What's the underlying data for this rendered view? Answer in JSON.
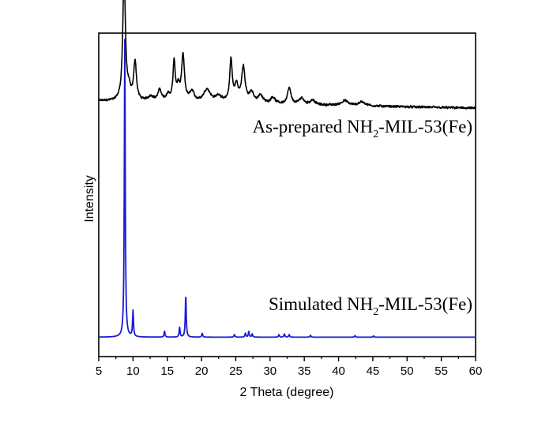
{
  "chart_data": {
    "type": "line",
    "title": "",
    "xlabel": "2 Theta (degree)",
    "ylabel": "Intensity",
    "xlim": [
      5,
      60
    ],
    "xticks": [
      "5",
      "10",
      "15",
      "20",
      "25",
      "30",
      "35",
      "40",
      "45",
      "50",
      "55",
      "60"
    ],
    "y_tick_labels": false,
    "grid": false,
    "legend": "none",
    "series": [
      {
        "label_main": "As-prepared NH",
        "label_sub": "2",
        "label_tail": "-MIL-53(Fe)",
        "color": "#000000",
        "baseline": 0.79,
        "noise": 0.0055,
        "tail_drop": 0.022,
        "peaks": [
          {
            "x": 8.7,
            "h": 0.4,
            "w": 0.22
          },
          {
            "x": 9.4,
            "h": 0.03,
            "w": 0.3
          },
          {
            "x": 10.3,
            "h": 0.12,
            "w": 0.24
          },
          {
            "x": 12.6,
            "h": 0.015,
            "w": 0.5
          },
          {
            "x": 13.9,
            "h": 0.035,
            "w": 0.3
          },
          {
            "x": 15.1,
            "h": 0.02,
            "w": 0.3
          },
          {
            "x": 16.0,
            "h": 0.12,
            "w": 0.2
          },
          {
            "x": 16.6,
            "h": 0.04,
            "w": 0.25
          },
          {
            "x": 17.3,
            "h": 0.14,
            "w": 0.25
          },
          {
            "x": 18.6,
            "h": 0.03,
            "w": 0.4
          },
          {
            "x": 20.8,
            "h": 0.04,
            "w": 0.6
          },
          {
            "x": 22.5,
            "h": 0.02,
            "w": 0.5
          },
          {
            "x": 24.3,
            "h": 0.13,
            "w": 0.22
          },
          {
            "x": 25.1,
            "h": 0.05,
            "w": 0.3
          },
          {
            "x": 26.1,
            "h": 0.11,
            "w": 0.3
          },
          {
            "x": 27.3,
            "h": 0.03,
            "w": 0.4
          },
          {
            "x": 28.6,
            "h": 0.025,
            "w": 0.4
          },
          {
            "x": 30.4,
            "h": 0.02,
            "w": 0.4
          },
          {
            "x": 32.8,
            "h": 0.05,
            "w": 0.3
          },
          {
            "x": 34.6,
            "h": 0.02,
            "w": 0.4
          },
          {
            "x": 36.2,
            "h": 0.015,
            "w": 0.4
          },
          {
            "x": 40.9,
            "h": 0.015,
            "w": 0.6
          },
          {
            "x": 43.4,
            "h": 0.012,
            "w": 0.6
          }
        ]
      },
      {
        "label_main": "Simulated NH",
        "label_sub": "2",
        "label_tail": "-MIL-53(Fe)",
        "color": "#1a1ad6",
        "baseline": 0.06,
        "noise": 0,
        "tail_drop": 0,
        "peaks": [
          {
            "x": 8.8,
            "h": 0.92,
            "w": 0.08
          },
          {
            "x": 10.0,
            "h": 0.08,
            "w": 0.08
          },
          {
            "x": 14.6,
            "h": 0.018,
            "w": 0.08
          },
          {
            "x": 16.8,
            "h": 0.03,
            "w": 0.08
          },
          {
            "x": 17.7,
            "h": 0.13,
            "w": 0.08
          },
          {
            "x": 20.1,
            "h": 0.012,
            "w": 0.08
          },
          {
            "x": 24.8,
            "h": 0.008,
            "w": 0.08
          },
          {
            "x": 26.4,
            "h": 0.012,
            "w": 0.08
          },
          {
            "x": 26.9,
            "h": 0.018,
            "w": 0.08
          },
          {
            "x": 27.4,
            "h": 0.01,
            "w": 0.08
          },
          {
            "x": 31.3,
            "h": 0.008,
            "w": 0.08
          },
          {
            "x": 32.1,
            "h": 0.01,
            "w": 0.08
          },
          {
            "x": 32.8,
            "h": 0.008,
            "w": 0.08
          },
          {
            "x": 35.9,
            "h": 0.006,
            "w": 0.08
          },
          {
            "x": 42.4,
            "h": 0.005,
            "w": 0.08
          },
          {
            "x": 45.1,
            "h": 0.004,
            "w": 0.08
          }
        ]
      }
    ]
  }
}
